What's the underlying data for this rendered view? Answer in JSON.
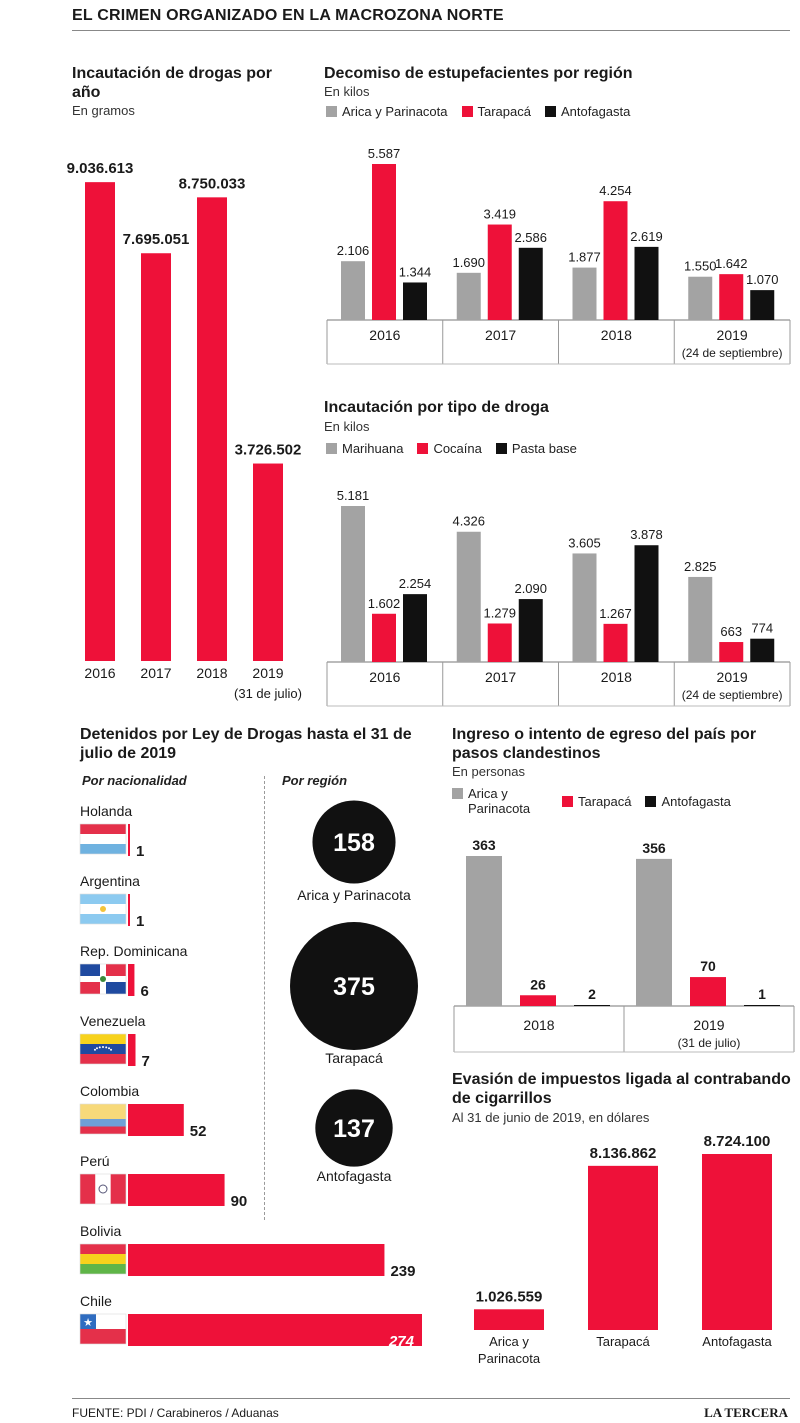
{
  "header": {
    "title": "EL CRIMEN ORGANIZADO EN LA MACROZONA NORTE"
  },
  "footer": {
    "source": "FUENTE: PDI / Carabineros / Aduanas",
    "brand": "LA TERCERA"
  },
  "colors": {
    "red": "#ee1139",
    "grey": "#a3a3a3",
    "black": "#111111"
  },
  "chart_data": [
    {
      "id": "drogas-por-ano",
      "type": "bar",
      "title": "Incautación de drogas por año",
      "subtitle": "En gramos",
      "categories": [
        "2016",
        "2017",
        "2018",
        "2019"
      ],
      "category_notes": [
        "",
        "",
        "",
        "(31 de julio)"
      ],
      "values": [
        9036613,
        7695051,
        8750033,
        3726502
      ],
      "value_labels": [
        "9.036.613",
        "7.695.051",
        "8.750.033",
        "3.726.502"
      ],
      "ylim": [
        0,
        9700000
      ]
    },
    {
      "id": "decomiso-por-region",
      "type": "bar",
      "title": "Decomiso de estupefacientes por región",
      "subtitle": "En kilos",
      "categories": [
        "2016",
        "2017",
        "2018",
        "2019"
      ],
      "category_notes": [
        "",
        "",
        "",
        "(24 de septiembre)"
      ],
      "series": [
        {
          "name": "Arica y Parinacota",
          "color": "#a3a3a3",
          "values": [
            2106,
            1690,
            1877,
            1550
          ],
          "labels": [
            "2.106",
            "1.690",
            "1.877",
            "1.550"
          ]
        },
        {
          "name": "Tarapacá",
          "color": "#ee1139",
          "values": [
            5587,
            3419,
            4254,
            1642
          ],
          "labels": [
            "5.587",
            "3.419",
            "4.254",
            "1.642"
          ]
        },
        {
          "name": "Antofagasta",
          "color": "#111111",
          "values": [
            1344,
            2586,
            2619,
            1070
          ],
          "labels": [
            "1.344",
            "2.586",
            "2.619",
            "1.070"
          ]
        }
      ],
      "ylim": [
        0,
        5587
      ]
    },
    {
      "id": "tipo-de-droga",
      "type": "bar",
      "title": "Incautación por tipo de droga",
      "subtitle": "En kilos",
      "categories": [
        "2016",
        "2017",
        "2018",
        "2019"
      ],
      "category_notes": [
        "",
        "",
        "",
        "(24 de septiembre)"
      ],
      "series": [
        {
          "name": "Marihuana",
          "color": "#a3a3a3",
          "values": [
            5181,
            4326,
            3605,
            2825
          ],
          "labels": [
            "5.181",
            "4.326",
            "3.605",
            "2.825"
          ]
        },
        {
          "name": "Cocaína",
          "color": "#ee1139",
          "values": [
            1602,
            1279,
            1267,
            663
          ],
          "labels": [
            "1.602",
            "1.279",
            "1.267",
            "663"
          ]
        },
        {
          "name": "Pasta base",
          "color": "#111111",
          "values": [
            2254,
            2090,
            3878,
            774
          ],
          "labels": [
            "2.254",
            "2.090",
            "3.878",
            "774"
          ]
        }
      ],
      "ylim": [
        0,
        5181
      ]
    },
    {
      "id": "detenidos-nacionalidad",
      "type": "bar",
      "orientation": "horizontal",
      "title": "Detenidos por Ley de Drogas hasta el 31 de julio de 2019",
      "subtitle": "Por nacionalidad",
      "categories": [
        "Holanda",
        "Argentina",
        "Rep. Dominicana",
        "Venezuela",
        "Colombia",
        "Perú",
        "Bolivia",
        "Chile"
      ],
      "values": [
        1,
        1,
        6,
        7,
        52,
        90,
        239,
        274
      ],
      "value_labels": [
        "1",
        "1",
        "6",
        "7",
        "52",
        "90",
        "239",
        "274"
      ],
      "xlim": [
        0,
        274
      ]
    },
    {
      "id": "detenidos-region",
      "type": "bubble",
      "subtitle": "Por región",
      "categories": [
        "Arica y Parinacota",
        "Tarapacá",
        "Antofagasta"
      ],
      "values": [
        158,
        375,
        137
      ],
      "value_labels": [
        "158",
        "375",
        "137"
      ]
    },
    {
      "id": "pasos-clandestinos",
      "type": "bar",
      "title": "Ingreso o intento de egreso del país por pasos clandestinos",
      "subtitle": "En personas",
      "categories": [
        "2018",
        "2019"
      ],
      "category_notes": [
        "",
        "(31 de julio)"
      ],
      "series": [
        {
          "name": "Arica y Parinacota",
          "color": "#a3a3a3",
          "values": [
            363,
            356
          ],
          "labels": [
            "363",
            "356"
          ]
        },
        {
          "name": "Tarapacá",
          "color": "#ee1139",
          "values": [
            26,
            70
          ],
          "labels": [
            "26",
            "70"
          ]
        },
        {
          "name": "Antofagasta",
          "color": "#111111",
          "values": [
            2,
            1
          ],
          "labels": [
            "2",
            "1"
          ]
        }
      ],
      "ylim": [
        0,
        363
      ]
    },
    {
      "id": "evasion-impuestos",
      "type": "bar",
      "title": "Evasión de impuestos ligada al contrabando de cigarrillos",
      "subtitle": "Al 31 de junio de 2019, en dólares",
      "categories": [
        "Arica y Parinacota",
        "Tarapacá",
        "Antofagasta"
      ],
      "values": [
        1026559,
        8136862,
        8724100
      ],
      "value_labels": [
        "1.026.559",
        "8.136.862",
        "8.724.100"
      ],
      "ylim": [
        0,
        8724100
      ]
    }
  ]
}
